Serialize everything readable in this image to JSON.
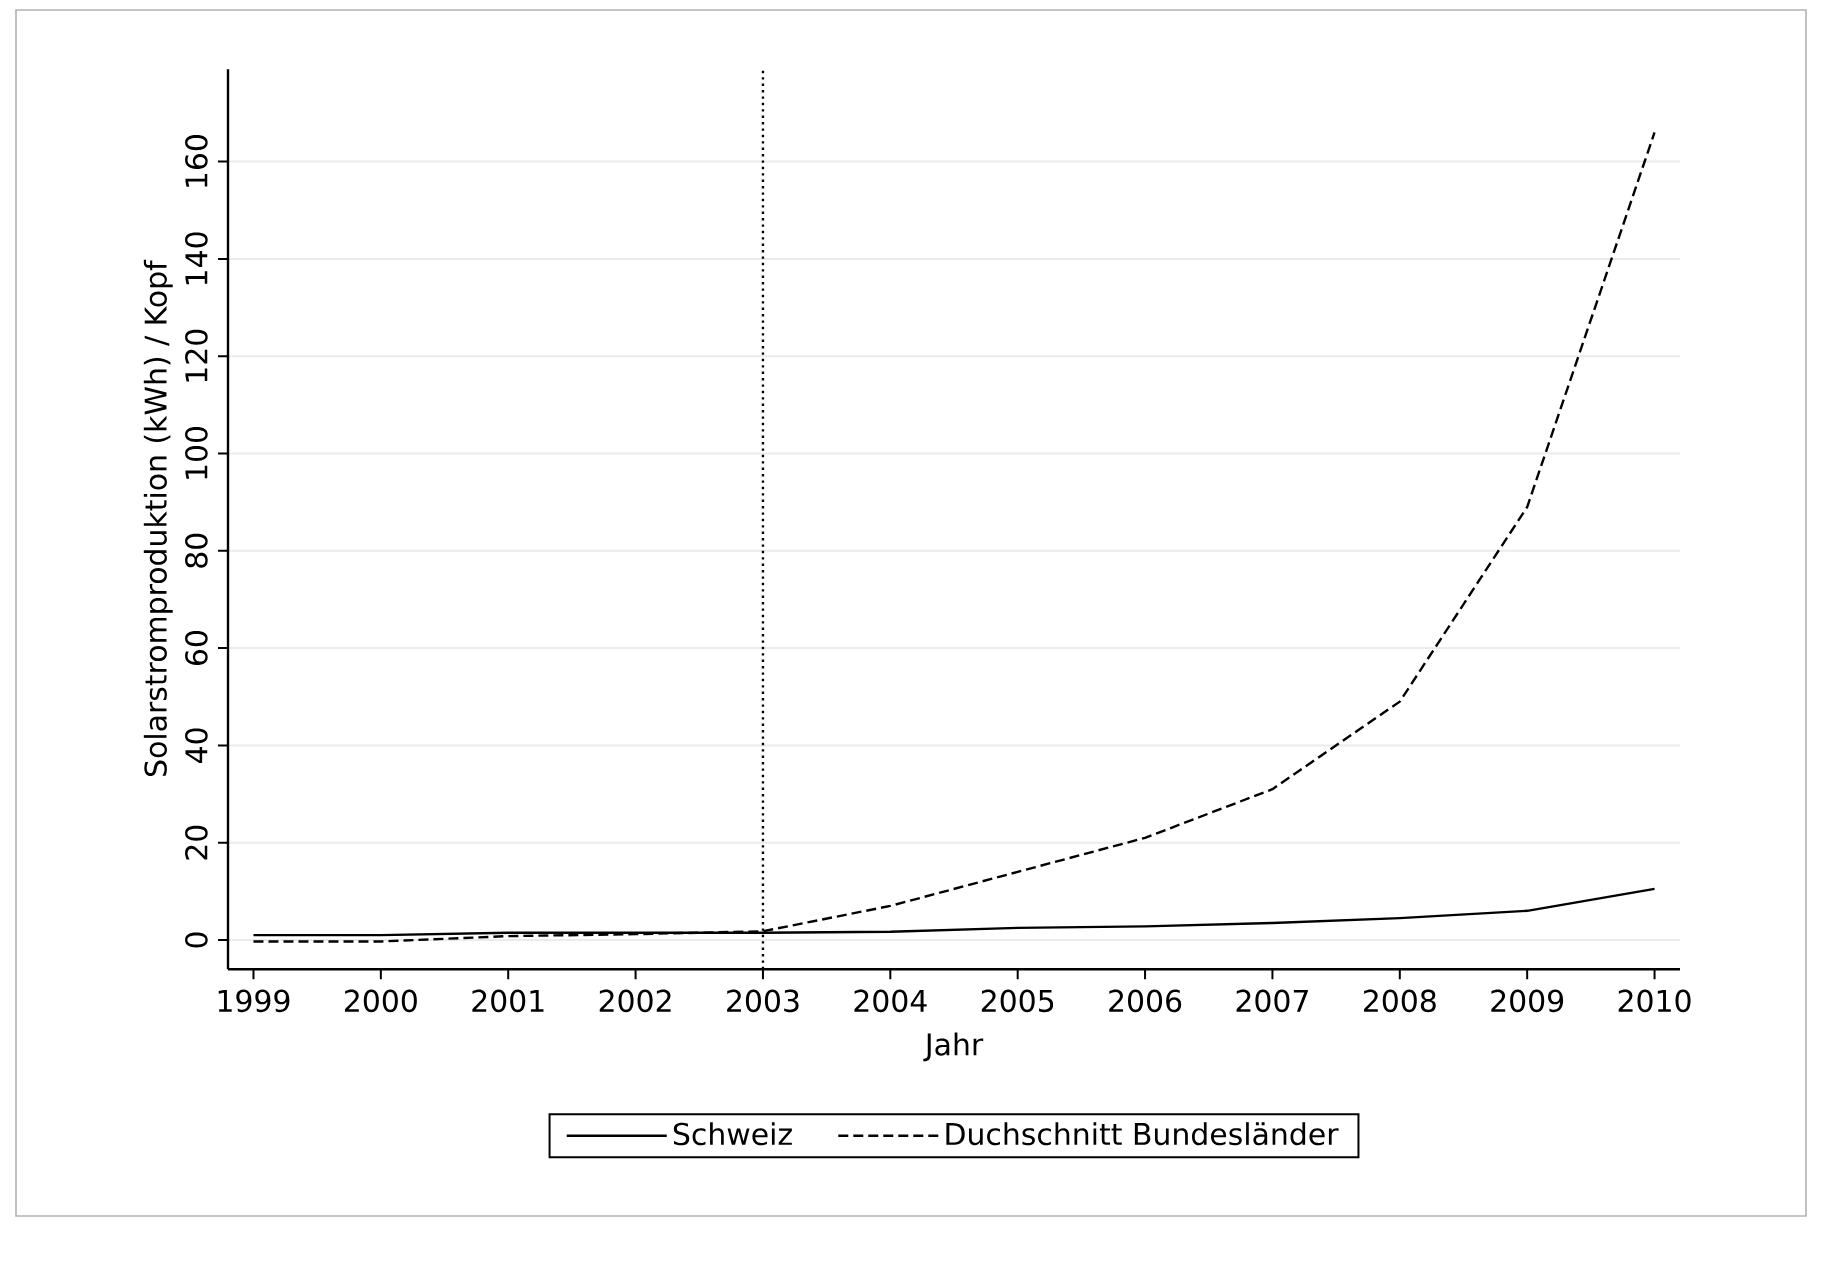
{
  "chart_data": {
    "type": "line",
    "xlabel": "Jahr",
    "ylabel": "Solarstromproduktion (kWh) / Kopf",
    "x": [
      1999,
      2000,
      2001,
      2002,
      2003,
      2004,
      2005,
      2006,
      2007,
      2008,
      2009,
      2010
    ],
    "series": [
      {
        "name": "Schweiz",
        "color": "#000000",
        "line_style": "solid",
        "values": [
          1,
          1,
          1.5,
          1.5,
          1.5,
          1.7,
          2.5,
          2.8,
          3.5,
          4.5,
          6,
          10.5
        ]
      },
      {
        "name": "Duchschnitt Bundesländer",
        "color": "#000000",
        "line_style": "dashed",
        "values": [
          -0.3,
          -0.3,
          0.8,
          1.2,
          1.8,
          7,
          14,
          21,
          31,
          49,
          89,
          166
        ]
      }
    ],
    "xlim": [
      1998.8,
      2010.2
    ],
    "ylim": [
      -6,
      179
    ],
    "xticks": [
      1999,
      2000,
      2001,
      2002,
      2003,
      2004,
      2005,
      2006,
      2007,
      2008,
      2009,
      2010
    ],
    "yticks": [
      0,
      20,
      40,
      60,
      80,
      100,
      120,
      140,
      160
    ],
    "grid": "y",
    "legend": "bottom",
    "marker": "none",
    "ref_lines": [
      {
        "axis": "x",
        "value": 2003,
        "line_style": "dotted"
      }
    ]
  }
}
